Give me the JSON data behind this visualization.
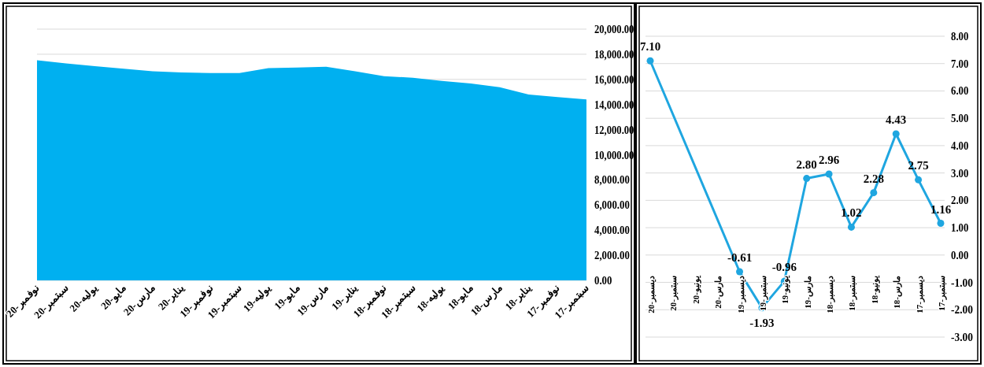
{
  "chart_data": [
    {
      "type": "area",
      "color": "#00b0f0",
      "grid": "y",
      "categories": [
        "نوفمبر-20",
        "سبتمبر-20",
        "يوليه-20",
        "مايو-20",
        "مارس-20",
        "يناير-20",
        "نوفمبر-19",
        "سبتمبر-19",
        "يوليه-19",
        "مايو-19",
        "مارس-19",
        "يناير-19",
        "نوفمبر-18",
        "سبتمبر-18",
        "يوليه-18",
        "مايو-18",
        "مارس-18",
        "يناير-18",
        "نوفمبر-17",
        "سبتمبر-17"
      ],
      "values": [
        17530,
        17280,
        17050,
        16850,
        16650,
        16550,
        16500,
        16500,
        16900,
        16950,
        17000,
        16650,
        16250,
        16130,
        15870,
        15670,
        15380,
        14800,
        14600,
        14400
      ],
      "ylim": [
        0,
        20000
      ],
      "yticks": [
        {
          "value": 0,
          "label": "0.00"
        },
        {
          "value": 2000,
          "label": "2,000.00"
        },
        {
          "value": 4000,
          "label": "4,000.00"
        },
        {
          "value": 6000,
          "label": "6,000.00"
        },
        {
          "value": 8000,
          "label": "8,000.00"
        },
        {
          "value": 10000,
          "label": "10,000.00"
        },
        {
          "value": 12000,
          "label": "12,000.00"
        },
        {
          "value": 14000,
          "label": "14,000.00"
        },
        {
          "value": 16000,
          "label": "16,000.00"
        },
        {
          "value": 18000,
          "label": "18,000.00"
        },
        {
          "value": 20000,
          "label": "20,000.00"
        }
      ]
    },
    {
      "type": "line",
      "color": "#1fa6e0",
      "grid": "y",
      "marker": "circle",
      "line_style": "solid",
      "categories": [
        "ديسمبر-20",
        "سبتمبر-20",
        "يونيو-20",
        "مارس-20",
        "ديسمبر-19",
        "سبتمبر-19",
        "يونيو-19",
        "مارس-19",
        "ديسمبر-18",
        "سبتمبر-18",
        "يونيو-18",
        "مارس-18",
        "ديسمبر-17",
        "سبتمبر-17"
      ],
      "values": [
        7.1,
        null,
        null,
        null,
        -0.61,
        -1.93,
        -0.96,
        2.8,
        2.96,
        1.02,
        2.28,
        4.43,
        2.75,
        1.16
      ],
      "value_labels": [
        "7.10",
        null,
        null,
        null,
        "-0.61",
        "-1.93",
        "-0.96",
        "2.80",
        "2.96",
        "1.02",
        "2.28",
        "4.43",
        "2.75",
        "1.16"
      ],
      "ylim": [
        -3,
        8
      ],
      "yticks": [
        {
          "value": -3,
          "label": "-3.00"
        },
        {
          "value": -2,
          "label": "-2.00"
        },
        {
          "value": -1,
          "label": "-1.00"
        },
        {
          "value": 0,
          "label": "0.00"
        },
        {
          "value": 1,
          "label": "1.00"
        },
        {
          "value": 2,
          "label": "2.00"
        },
        {
          "value": 3,
          "label": "3.00"
        },
        {
          "value": 4,
          "label": "4.00"
        },
        {
          "value": 5,
          "label": "5.00"
        },
        {
          "value": 6,
          "label": "6.00"
        },
        {
          "value": 7,
          "label": "7.00"
        },
        {
          "value": 8,
          "label": "8.00"
        }
      ]
    }
  ]
}
